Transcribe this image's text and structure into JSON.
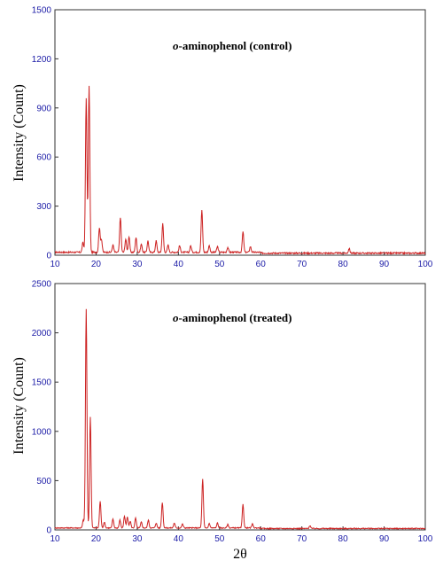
{
  "chart_data": [
    {
      "type": "line",
      "title_prefix": "o",
      "title_rest": "-aminophenol (control)",
      "ylabel": "Intensity (Count)",
      "xlabel": "",
      "xlim": [
        10,
        100
      ],
      "ylim": [
        0,
        1500
      ],
      "xticks": [
        10,
        20,
        30,
        40,
        50,
        60,
        70,
        80,
        90,
        100
      ],
      "yticks": [
        0,
        300,
        600,
        900,
        1200,
        1500
      ],
      "color": "#cc2222",
      "baseline": 18,
      "peaks": [
        {
          "x": 17.6,
          "y": 940
        },
        {
          "x": 18.3,
          "y": 1020
        },
        {
          "x": 16.8,
          "y": 60
        },
        {
          "x": 20.8,
          "y": 150
        },
        {
          "x": 21.3,
          "y": 80
        },
        {
          "x": 24.1,
          "y": 45
        },
        {
          "x": 25.9,
          "y": 215
        },
        {
          "x": 27.2,
          "y": 80
        },
        {
          "x": 28.0,
          "y": 95
        },
        {
          "x": 29.7,
          "y": 90
        },
        {
          "x": 31.0,
          "y": 50
        },
        {
          "x": 32.6,
          "y": 70
        },
        {
          "x": 34.6,
          "y": 70
        },
        {
          "x": 36.2,
          "y": 175
        },
        {
          "x": 37.5,
          "y": 45
        },
        {
          "x": 40.3,
          "y": 40
        },
        {
          "x": 43.0,
          "y": 40
        },
        {
          "x": 45.7,
          "y": 258
        },
        {
          "x": 47.5,
          "y": 40
        },
        {
          "x": 49.5,
          "y": 35
        },
        {
          "x": 52.0,
          "y": 30
        },
        {
          "x": 55.7,
          "y": 125
        },
        {
          "x": 57.5,
          "y": 35
        },
        {
          "x": 81.5,
          "y": 28
        }
      ]
    },
    {
      "type": "line",
      "title_prefix": "o",
      "title_rest": "-aminophenol (treated)",
      "ylabel": "Intensity (Count)",
      "xlabel": "2θ",
      "xlim": [
        10,
        100
      ],
      "ylim": [
        0,
        2500
      ],
      "xticks": [
        10,
        20,
        30,
        40,
        50,
        60,
        70,
        80,
        90,
        100
      ],
      "yticks": [
        0,
        500,
        1000,
        1500,
        2000,
        2500
      ],
      "color": "#cc2222",
      "baseline": 20,
      "peaks": [
        {
          "x": 17.6,
          "y": 2220
        },
        {
          "x": 18.6,
          "y": 1130
        },
        {
          "x": 16.9,
          "y": 80
        },
        {
          "x": 21.0,
          "y": 270
        },
        {
          "x": 22.0,
          "y": 60
        },
        {
          "x": 24.1,
          "y": 90
        },
        {
          "x": 25.8,
          "y": 80
        },
        {
          "x": 26.9,
          "y": 120
        },
        {
          "x": 27.6,
          "y": 110
        },
        {
          "x": 28.3,
          "y": 70
        },
        {
          "x": 29.6,
          "y": 100
        },
        {
          "x": 31.0,
          "y": 60
        },
        {
          "x": 32.7,
          "y": 80
        },
        {
          "x": 34.6,
          "y": 50
        },
        {
          "x": 36.1,
          "y": 260
        },
        {
          "x": 39.0,
          "y": 50
        },
        {
          "x": 41.0,
          "y": 40
        },
        {
          "x": 45.9,
          "y": 495
        },
        {
          "x": 47.5,
          "y": 45
        },
        {
          "x": 49.5,
          "y": 50
        },
        {
          "x": 52.0,
          "y": 35
        },
        {
          "x": 55.7,
          "y": 240
        },
        {
          "x": 58.0,
          "y": 40
        },
        {
          "x": 72.0,
          "y": 30
        }
      ]
    }
  ]
}
